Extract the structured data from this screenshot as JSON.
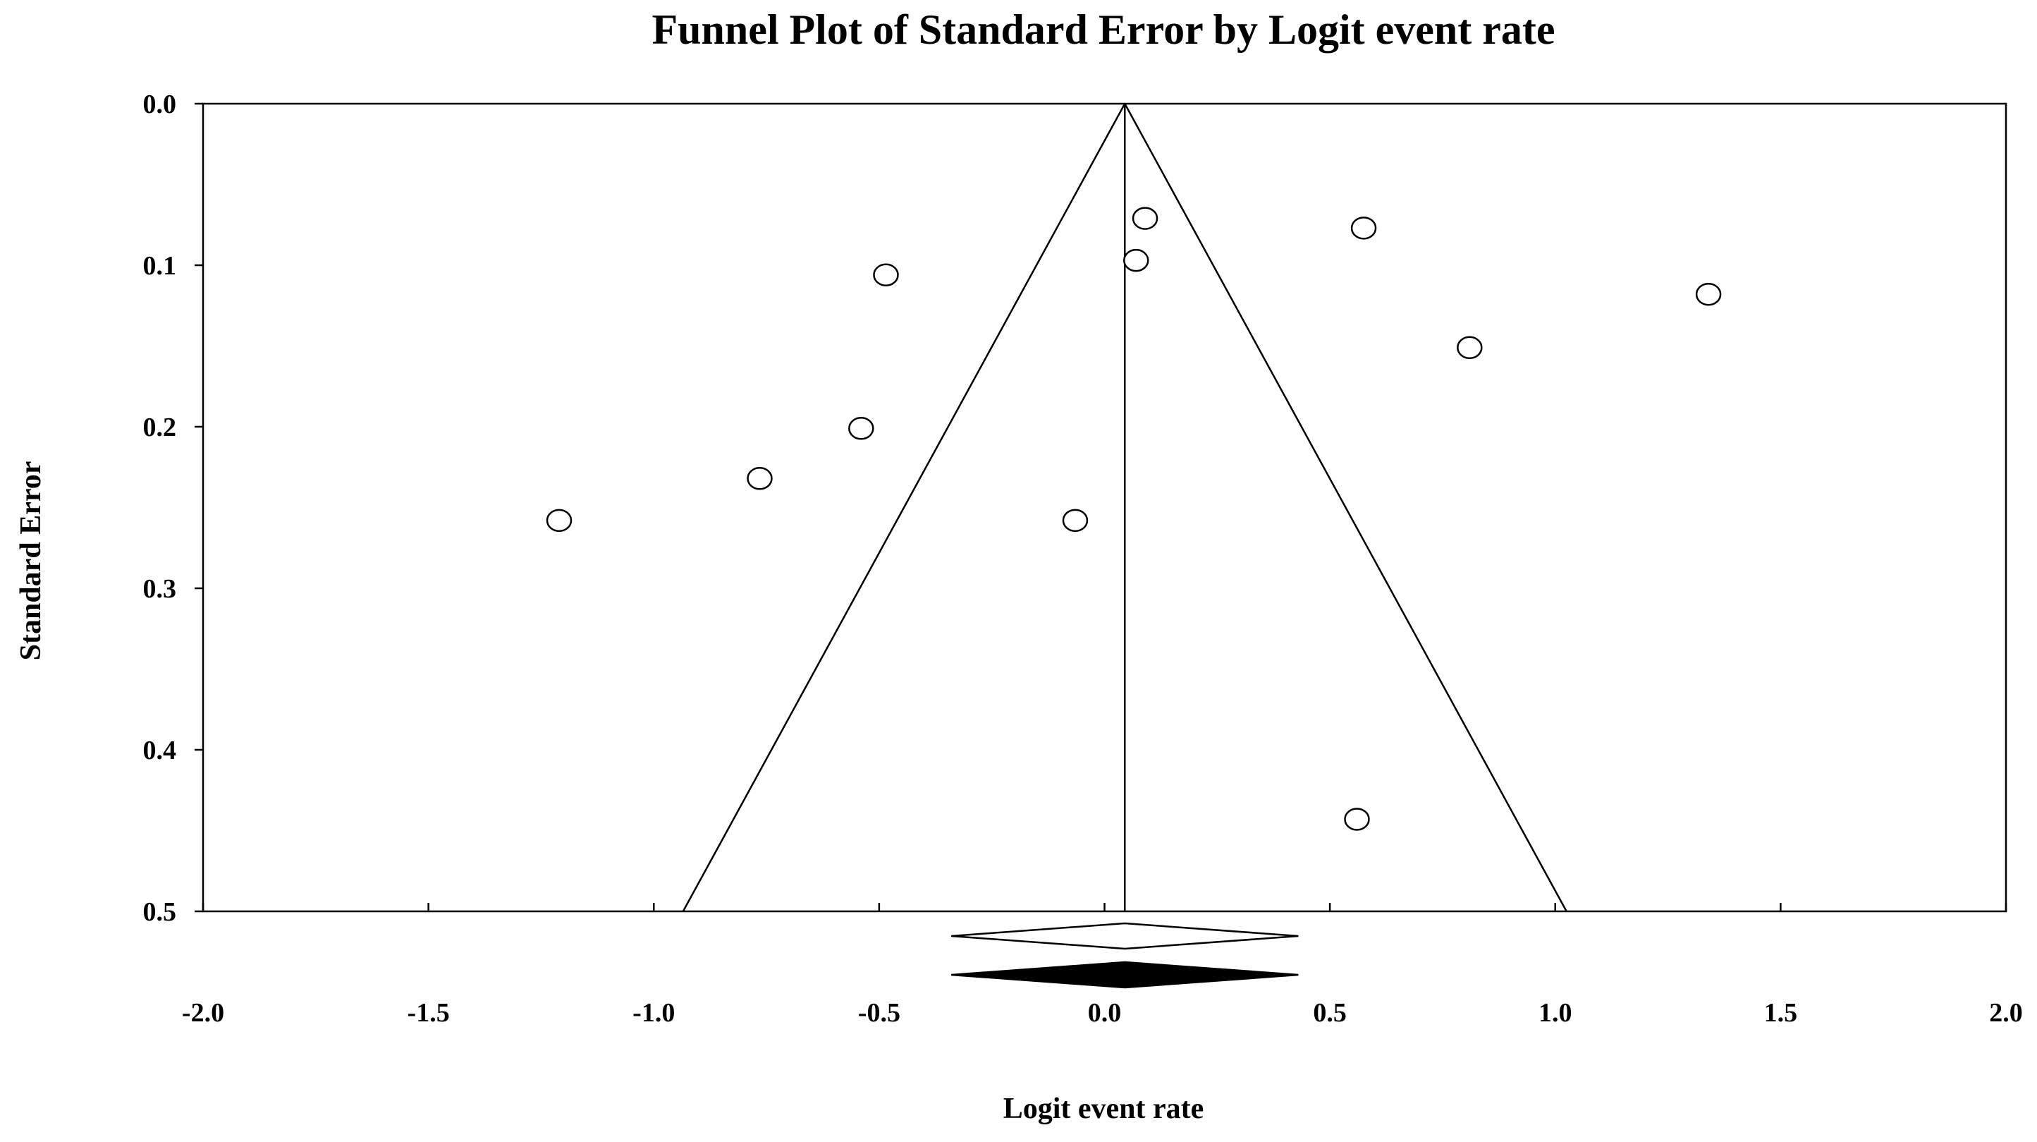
{
  "chart_data": {
    "type": "scatter",
    "title": "Funnel Plot of Standard Error by Logit event rate",
    "xlabel": "Logit event rate",
    "ylabel": "Standard Error",
    "xlim": [
      -2.0,
      2.0
    ],
    "ylim": [
      0.0,
      0.5
    ],
    "y_inverted": true,
    "x_ticks": [
      "-2.0",
      "-1.5",
      "-1.0",
      "-0.5",
      "0.0",
      "0.5",
      "1.0",
      "1.5",
      "2.0"
    ],
    "x_tick_values": [
      -2.0,
      -1.5,
      -1.0,
      -0.5,
      0.0,
      0.5,
      1.0,
      1.5,
      2.0
    ],
    "y_ticks": [
      "0.0",
      "0.1",
      "0.2",
      "0.3",
      "0.4",
      "0.5"
    ],
    "y_tick_values": [
      0.0,
      0.1,
      0.2,
      0.3,
      0.4,
      0.5
    ],
    "grid": false,
    "pooled_estimate": 0.045,
    "funnel_limits_at_max_se": [
      -0.935,
      1.025
    ],
    "points": [
      {
        "x": 0.09,
        "y": 0.071
      },
      {
        "x": 0.07,
        "y": 0.097
      },
      {
        "x": 0.575,
        "y": 0.077
      },
      {
        "x": -0.485,
        "y": 0.106
      },
      {
        "x": 1.34,
        "y": 0.118
      },
      {
        "x": 0.81,
        "y": 0.151
      },
      {
        "x": -0.54,
        "y": 0.201
      },
      {
        "x": -0.765,
        "y": 0.232
      },
      {
        "x": -1.21,
        "y": 0.258
      },
      {
        "x": -0.065,
        "y": 0.258
      },
      {
        "x": 0.56,
        "y": 0.443
      }
    ],
    "summary_diamonds": [
      {
        "fill": "#ffffff",
        "center": 0.045,
        "lower": -0.34,
        "upper": 0.43
      },
      {
        "fill": "#000000",
        "center": 0.045,
        "lower": -0.34,
        "upper": 0.43
      }
    ],
    "colors": {
      "line": "#000000",
      "marker_fill": "#ffffff",
      "background": "#ffffff"
    }
  }
}
